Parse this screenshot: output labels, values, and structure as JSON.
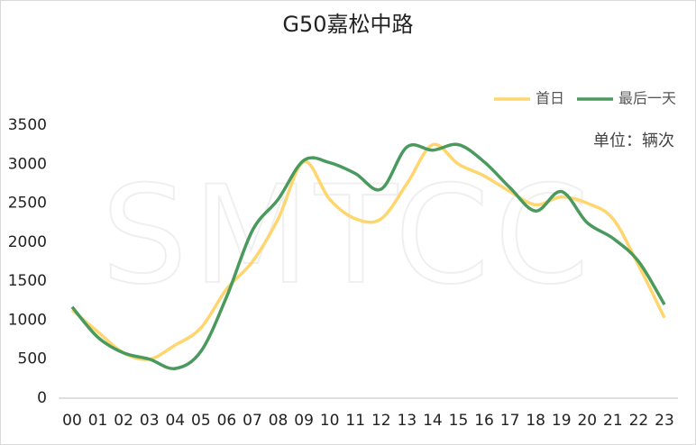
{
  "chart_data": {
    "type": "line",
    "title": "G50嘉松中路",
    "annotation": "单位：辆次",
    "watermark": "SMTCC",
    "categories": [
      "00",
      "01",
      "02",
      "03",
      "04",
      "05",
      "06",
      "07",
      "08",
      "09",
      "10",
      "11",
      "12",
      "13",
      "14",
      "15",
      "16",
      "17",
      "18",
      "19",
      "20",
      "21",
      "22",
      "23"
    ],
    "series": [
      {
        "name": "首日",
        "color": "#ffd56e",
        "values": [
          1130,
          850,
          580,
          500,
          680,
          900,
          1400,
          1750,
          2300,
          3030,
          2550,
          2300,
          2300,
          2750,
          3250,
          3000,
          2850,
          2650,
          2480,
          2580,
          2500,
          2300,
          1700,
          1030
        ]
      },
      {
        "name": "最后一天",
        "color": "#4a9a5e",
        "values": [
          1170,
          780,
          580,
          500,
          380,
          600,
          1300,
          2150,
          2550,
          3050,
          3020,
          2880,
          2680,
          3220,
          3180,
          3250,
          3030,
          2700,
          2400,
          2650,
          2250,
          2050,
          1750,
          1200
        ]
      }
    ],
    "ylim": [
      0,
      3500
    ],
    "yticks": [
      0,
      500,
      1000,
      1500,
      2000,
      2500,
      3000,
      3500
    ],
    "legend": "top-right"
  }
}
